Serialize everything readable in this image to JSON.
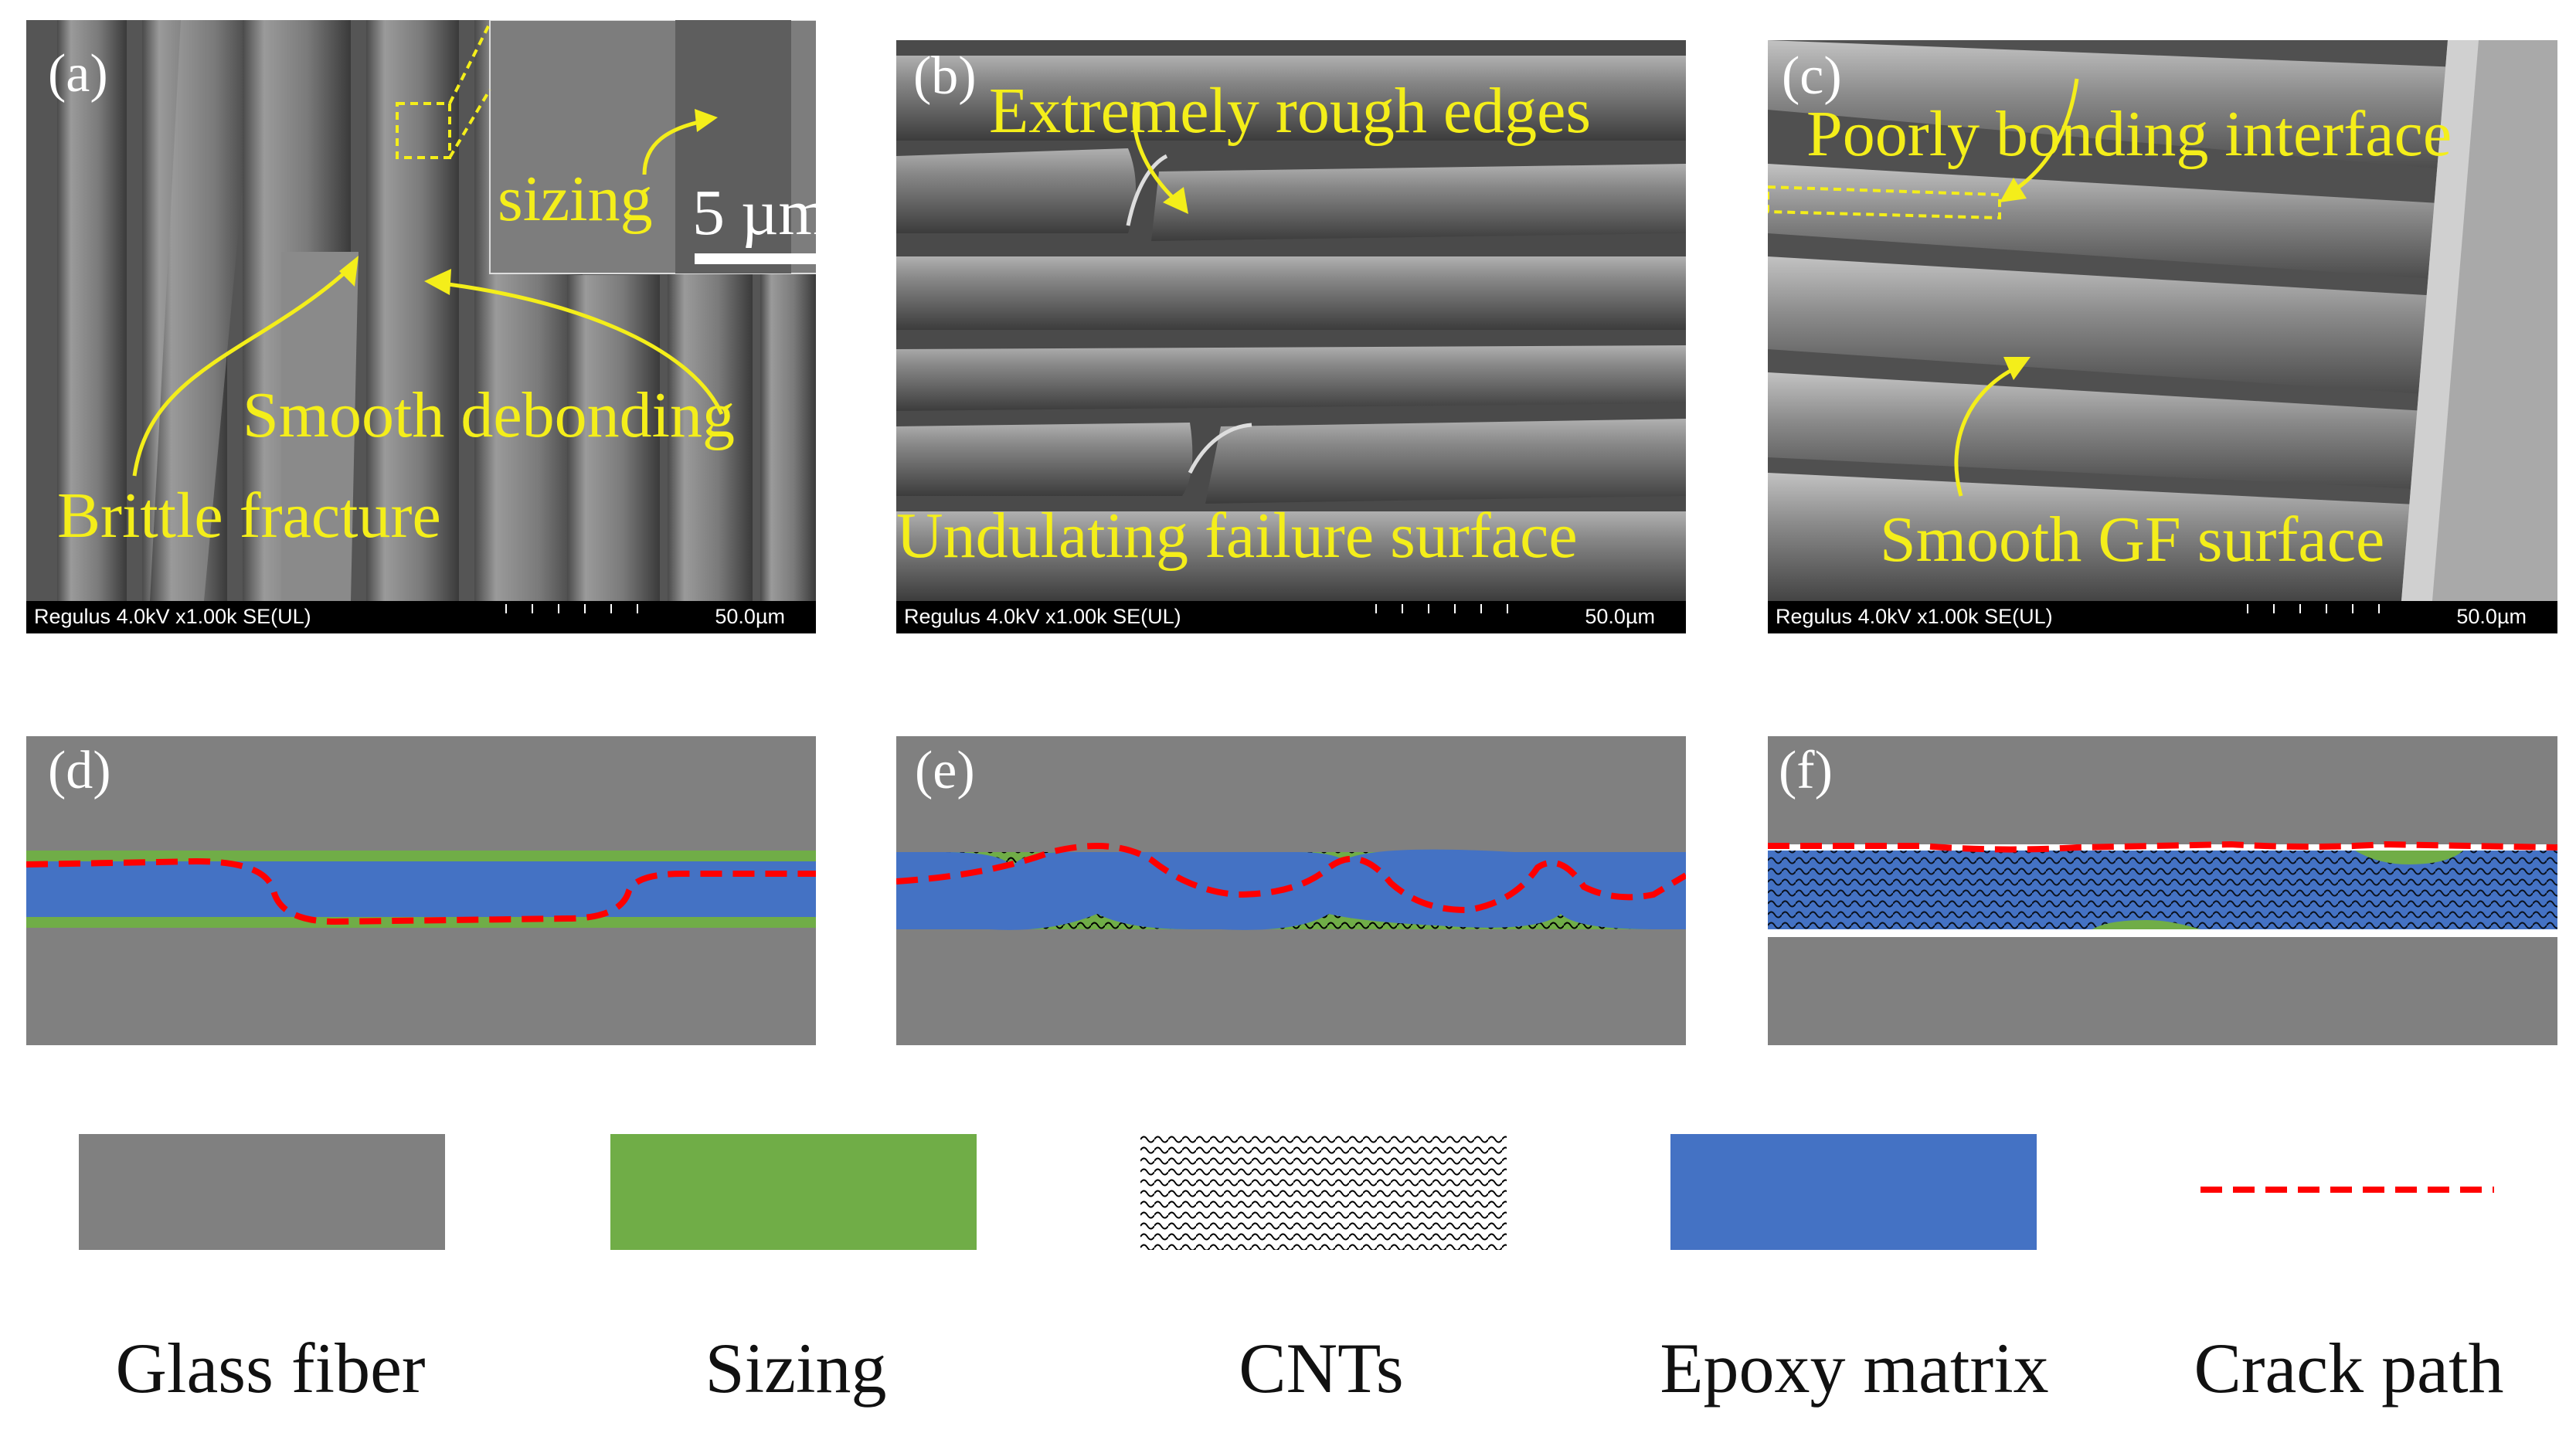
{
  "panels": {
    "a": {
      "label": "(a)",
      "sem_info": "Regulus 4.0kV x1.00k SE(UL)",
      "sem_scale": "50.0µm",
      "inset_label": "sizing",
      "inset_scale": "5  µm",
      "annotations": [
        "Smooth debonding",
        "Brittle fracture"
      ]
    },
    "b": {
      "label": "(b)",
      "sem_info": "Regulus 4.0kV x1.00k SE(UL)",
      "sem_scale": "50.0µm",
      "annotations": [
        "Extremely rough edges",
        "Undulating failure surface"
      ]
    },
    "c": {
      "label": "(c)",
      "sem_info": "Regulus 4.0kV x1.00k SE(UL)",
      "sem_scale": "50.0µm",
      "annotations": [
        "Poorly bonding interface",
        "Smooth GF surface"
      ]
    },
    "d": {
      "label": "(d)"
    },
    "e": {
      "label": "(e)"
    },
    "f": {
      "label": "(f)"
    }
  },
  "legend": [
    {
      "label": "Glass fiber",
      "color": "#808080"
    },
    {
      "label": "Sizing",
      "color": "#70ad47"
    },
    {
      "label": "CNTs",
      "color": "pattern"
    },
    {
      "label": "Epoxy matrix",
      "color": "#4472c4"
    },
    {
      "label": "Crack path",
      "color": "#ff0000"
    }
  ],
  "colors": {
    "annotation": "#f4ee1a",
    "fiber": "#808080",
    "sizing": "#70ad47",
    "epoxy": "#4472c4",
    "crack": "#ff0000"
  }
}
